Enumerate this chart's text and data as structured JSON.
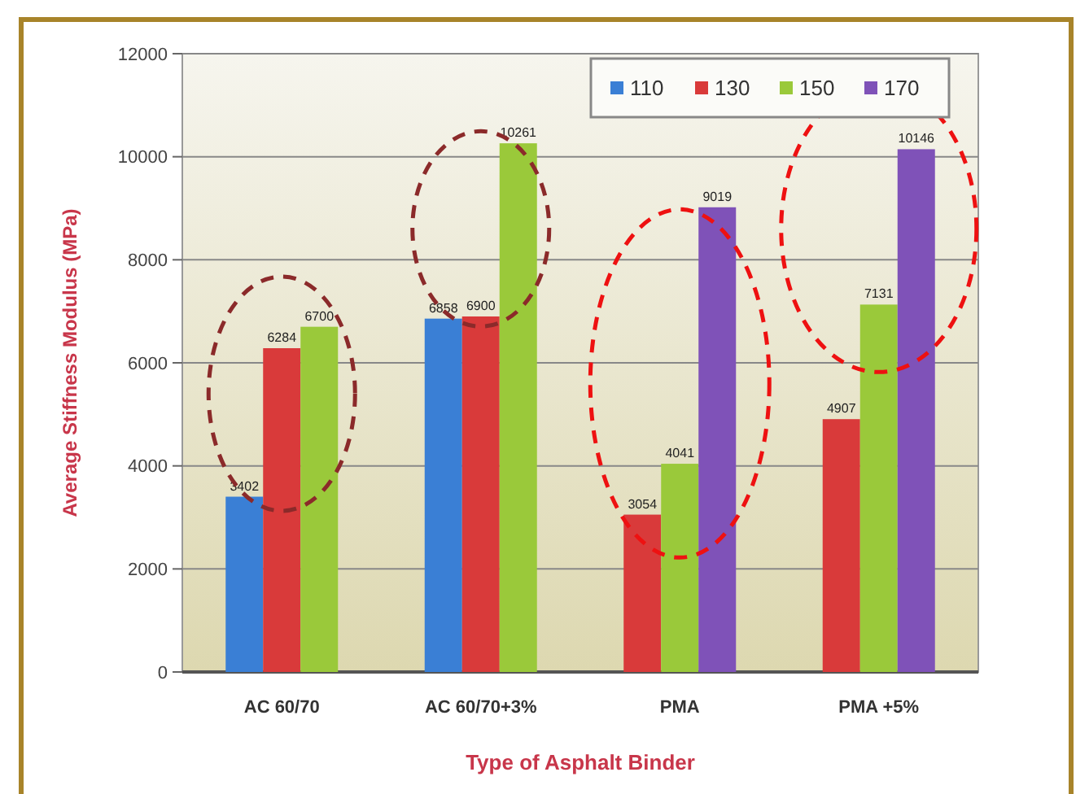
{
  "chart_data": {
    "type": "bar",
    "xlabel": "Type of Asphalt Binder",
    "ylabel": "Average Stiffness Modulus (MPa)",
    "categories": [
      "AC 60/70",
      "AC 60/70+3%",
      "PMA",
      "PMA +5%"
    ],
    "series": [
      {
        "name": "110",
        "color": "#3a7fd5",
        "values": [
          3402,
          6858,
          null,
          null
        ]
      },
      {
        "name": "130",
        "color": "#d93a3a",
        "values": [
          6284,
          6900,
          3054,
          4907
        ]
      },
      {
        "name": "150",
        "color": "#9ac93a",
        "values": [
          6700,
          10261,
          4041,
          7131
        ]
      },
      {
        "name": "170",
        "color": "#7f52b8",
        "values": [
          null,
          null,
          9019,
          10146
        ]
      }
    ],
    "ylim": [
      0,
      12000
    ],
    "yticks": [
      0,
      2000,
      4000,
      6000,
      8000,
      10000,
      12000
    ],
    "grid": "y",
    "legend": "top right",
    "data_labels": true
  }
}
